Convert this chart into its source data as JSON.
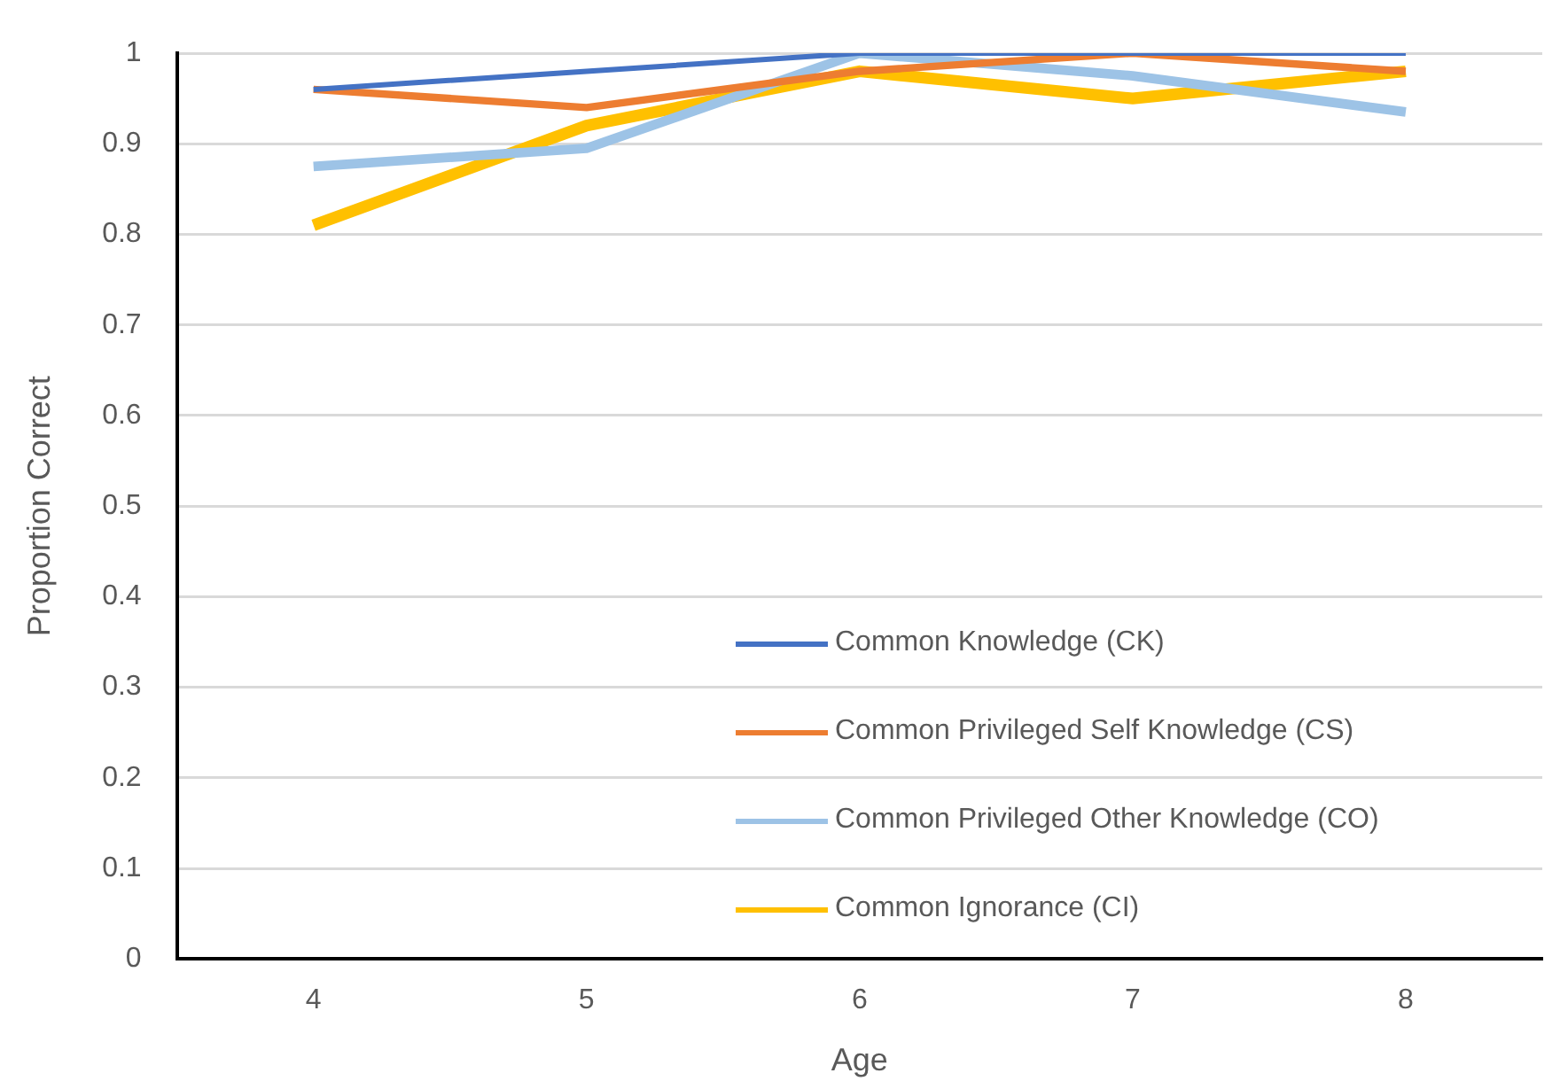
{
  "chart_data": {
    "type": "line",
    "xlabel": "Age",
    "ylabel": "Proportion Correct",
    "categories": [
      "4",
      "5",
      "6",
      "7",
      "8"
    ],
    "ylim": [
      0,
      1
    ],
    "yticks": [
      0,
      0.1,
      0.2,
      0.3,
      0.4,
      0.5,
      0.6,
      0.7,
      0.8,
      0.9,
      1
    ],
    "grid": "y",
    "legend": "bottom right",
    "marker": "none",
    "series": [
      {
        "name": "Common Knowledge (CK)",
        "color": "#4472c4",
        "values": [
          0.96,
          0.98,
          1,
          1,
          1
        ]
      },
      {
        "name": "Common Privileged Self Knowledge (CS)",
        "color": "#ed7d31",
        "values": [
          0.96,
          0.94,
          0.98,
          1,
          0.98
        ]
      },
      {
        "name": "Common Privileged Other Knowledge (CO)",
        "color": "#9dc3e6",
        "values": [
          0.875,
          0.895,
          1,
          0.975,
          0.935
        ]
      },
      {
        "name": "Common Ignorance (CI)",
        "color": "#ffc000",
        "values": [
          0.81,
          0.92,
          0.98,
          0.95,
          0.98
        ]
      }
    ]
  }
}
